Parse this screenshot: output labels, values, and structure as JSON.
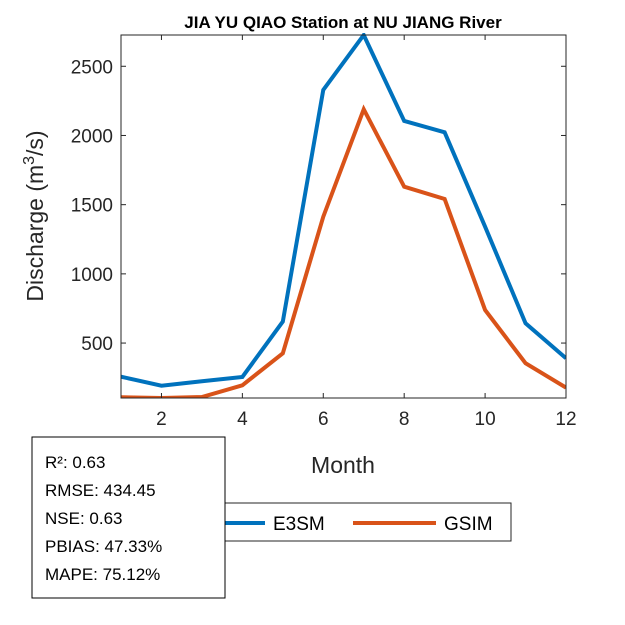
{
  "chart_data": {
    "type": "line",
    "title": "JIA YU QIAO  Station at  NU JIANG  River",
    "xlabel": "Month",
    "ylabel_main": "Discharge (m",
    "ylabel_sup": "3",
    "ylabel_end": "/s)",
    "xlim": [
      1,
      12
    ],
    "ylim": [
      103,
      2726
    ],
    "xticks": [
      2,
      4,
      6,
      8,
      10,
      12
    ],
    "yticks": [
      500,
      1000,
      1500,
      2000,
      2500
    ],
    "grid": false,
    "legend_position": "bottom",
    "x": [
      1,
      2,
      3,
      4,
      5,
      6,
      7,
      8,
      9,
      10,
      11,
      12
    ],
    "series": [
      {
        "name": "E3SM",
        "color": "#0072BD",
        "values": [
          257,
          192,
          224,
          255,
          655,
          2329,
          2726,
          2105,
          2023,
          1341,
          643,
          390
        ]
      },
      {
        "name": "GSIM",
        "color": "#D95319",
        "values": [
          108,
          103,
          110,
          195,
          426,
          1413,
          2189,
          1630,
          1541,
          739,
          354,
          178
        ]
      }
    ],
    "annotation": [
      "R²: 0.63",
      "RMSE: 434.45",
      "NSE: 0.63",
      "PBIAS: 47.33%",
      "MAPE: 75.12%"
    ]
  }
}
